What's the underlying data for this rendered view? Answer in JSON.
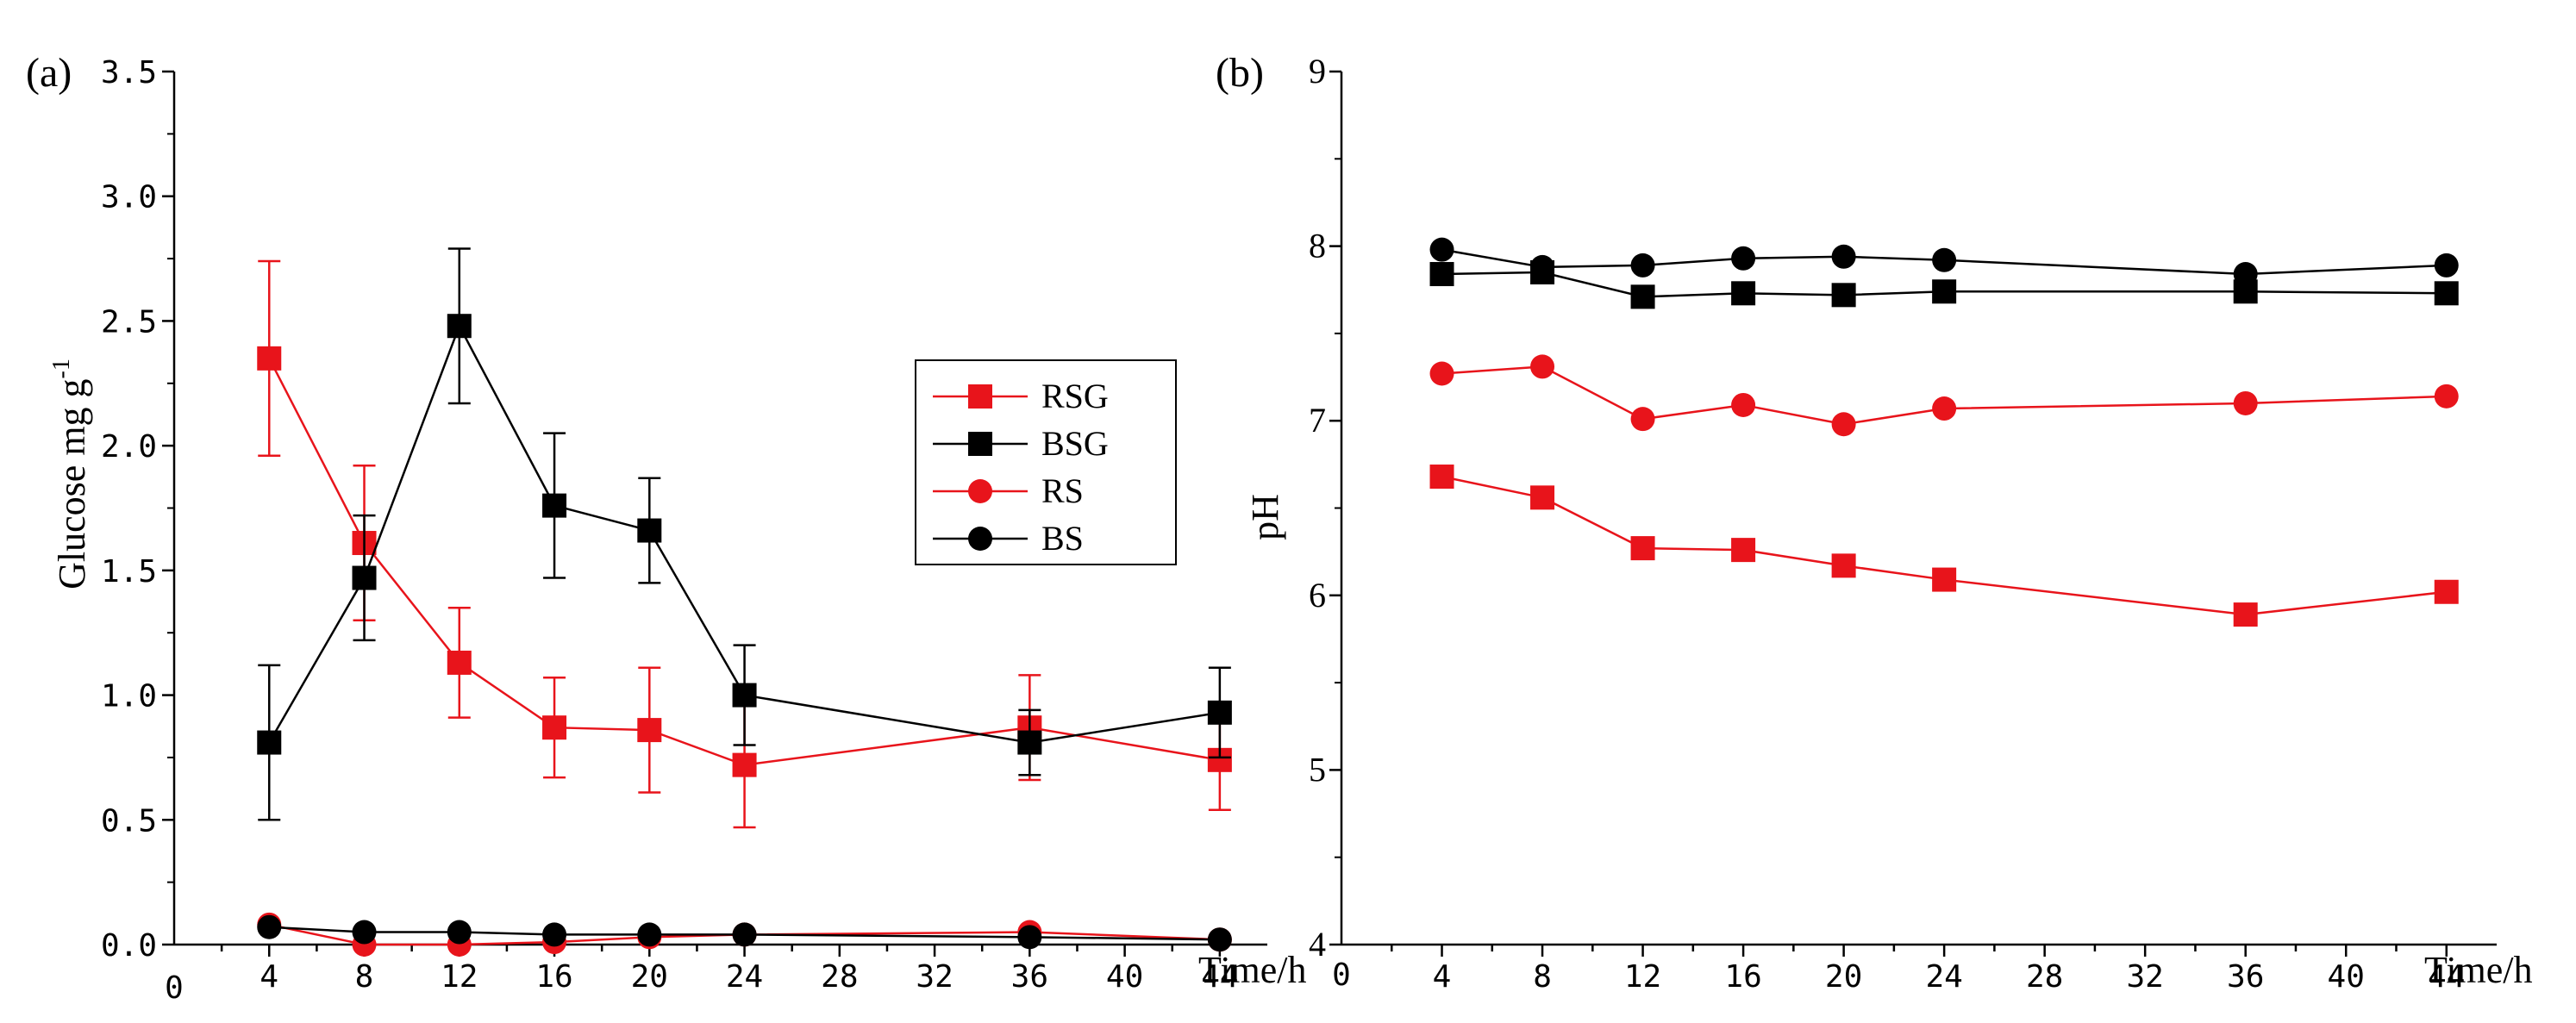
{
  "chart_data": [
    {
      "panel_label": "(a)",
      "type": "line",
      "ylabel": "Glucose  mg g",
      "ylabel_superscript": "-1",
      "xlabel": "Time/h",
      "x_origin_label": "0",
      "xlim": [
        0,
        46
      ],
      "ylim": [
        0,
        3.5
      ],
      "x_ticks": [
        4,
        8,
        12,
        16,
        20,
        24,
        28,
        32,
        36,
        40,
        44
      ],
      "y_ticks": [
        "0.0",
        "0.5",
        "1.0",
        "1.5",
        "2.0",
        "2.5",
        "3.0",
        "3.5"
      ],
      "series": [
        {
          "name": "RSG",
          "color": "#e8141b",
          "marker": "square",
          "x": [
            4,
            8,
            12,
            16,
            20,
            24,
            36,
            44
          ],
          "y": [
            2.35,
            1.61,
            1.13,
            0.87,
            0.86,
            0.72,
            0.87,
            0.74
          ],
          "err": [
            0.39,
            0.31,
            0.22,
            0.2,
            0.25,
            0.25,
            0.21,
            0.2
          ]
        },
        {
          "name": "BSG",
          "color": "#000000",
          "marker": "square",
          "x": [
            4,
            8,
            12,
            16,
            20,
            24,
            36,
            44
          ],
          "y": [
            0.81,
            1.47,
            2.48,
            1.76,
            1.66,
            1.0,
            0.81,
            0.93
          ],
          "err": [
            0.31,
            0.25,
            0.31,
            0.29,
            0.21,
            0.2,
            0.13,
            0.18
          ]
        },
        {
          "name": "RS",
          "color": "#e8141b",
          "marker": "circle",
          "x": [
            4,
            8,
            12,
            16,
            20,
            24,
            36,
            44
          ],
          "y": [
            0.08,
            0.0,
            0.0,
            0.01,
            0.03,
            0.04,
            0.05,
            0.02
          ]
        },
        {
          "name": "BS",
          "color": "#000000",
          "marker": "circle",
          "x": [
            4,
            8,
            12,
            16,
            20,
            24,
            36,
            44
          ],
          "y": [
            0.07,
            0.05,
            0.05,
            0.04,
            0.04,
            0.04,
            0.03,
            0.02
          ]
        }
      ],
      "legend": [
        "RSG",
        "BSG",
        "RS",
        "BS"
      ]
    },
    {
      "panel_label": "(b)",
      "type": "line",
      "ylabel": "pH",
      "xlabel": "Time/h",
      "x_origin_label": "0",
      "xlim": [
        0,
        46
      ],
      "ylim": [
        4,
        9
      ],
      "x_ticks": [
        4,
        8,
        12,
        16,
        20,
        24,
        28,
        32,
        36,
        40,
        44
      ],
      "y_ticks": [
        "4",
        "5",
        "6",
        "7",
        "8",
        "9"
      ],
      "series": [
        {
          "name": "BS",
          "color": "#000000",
          "marker": "circle",
          "x": [
            4,
            8,
            12,
            16,
            20,
            24,
            36,
            44
          ],
          "y": [
            7.98,
            7.88,
            7.89,
            7.93,
            7.94,
            7.92,
            7.84,
            7.89
          ]
        },
        {
          "name": "BSG",
          "color": "#000000",
          "marker": "square",
          "x": [
            4,
            8,
            12,
            16,
            20,
            24,
            36,
            44
          ],
          "y": [
            7.84,
            7.85,
            7.71,
            7.73,
            7.72,
            7.74,
            7.74,
            7.73
          ]
        },
        {
          "name": "RS",
          "color": "#e8141b",
          "marker": "circle",
          "x": [
            4,
            8,
            12,
            16,
            20,
            24,
            36,
            44
          ],
          "y": [
            7.27,
            7.31,
            7.01,
            7.09,
            6.98,
            7.07,
            7.1,
            7.14
          ]
        },
        {
          "name": "RSG",
          "color": "#e8141b",
          "marker": "square",
          "x": [
            4,
            8,
            12,
            16,
            20,
            24,
            36,
            44
          ],
          "y": [
            6.68,
            6.56,
            6.27,
            6.26,
            6.17,
            6.09,
            5.89,
            6.02
          ]
        }
      ]
    }
  ]
}
